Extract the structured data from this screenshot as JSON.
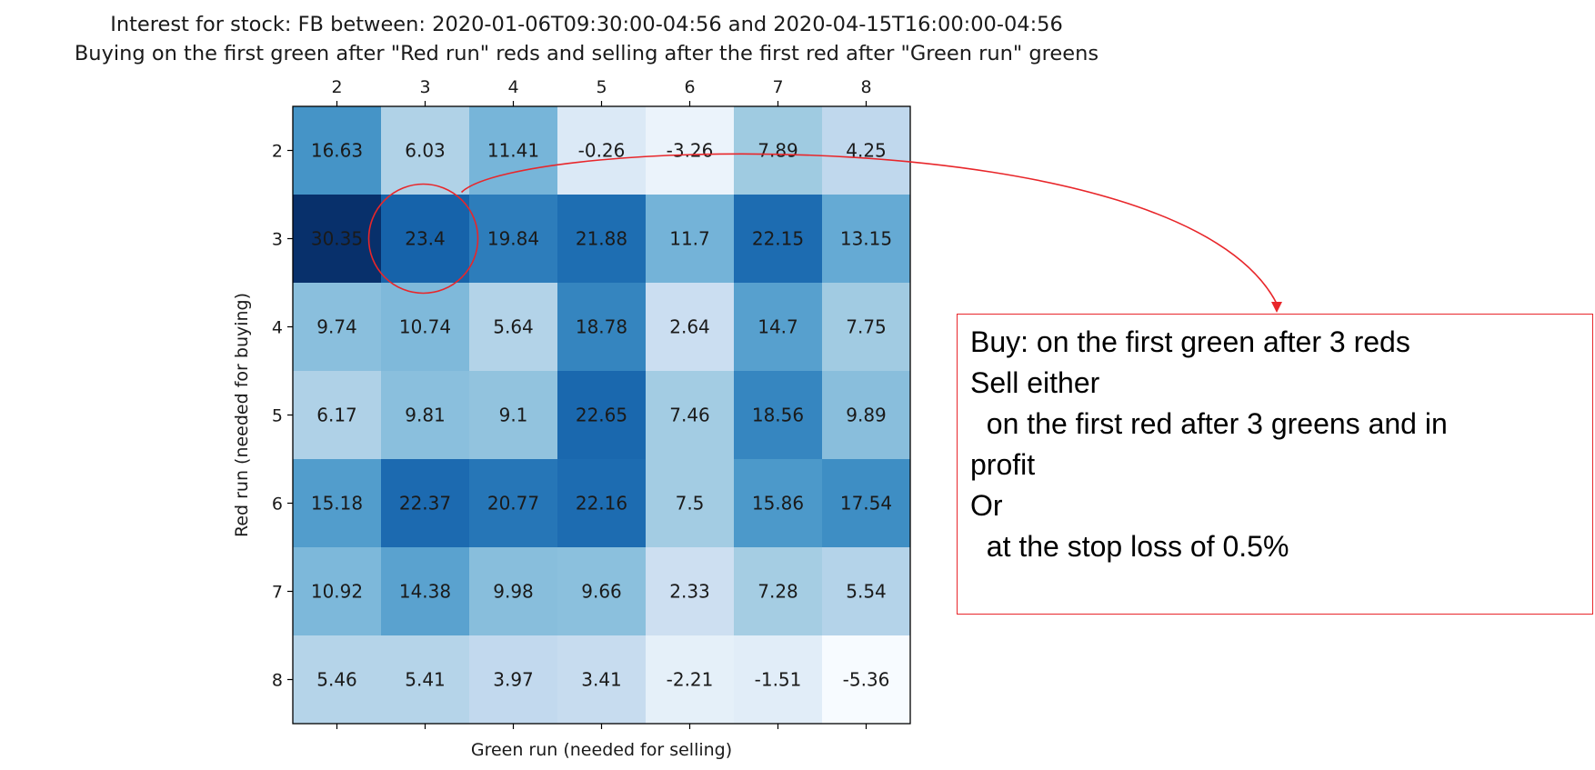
{
  "chart_data": {
    "type": "heatmap",
    "title": "Interest for stock: FB between: 2020-01-06T09:30:00-04:56 and 2020-04-15T16:00:00-04:56",
    "subtitle": "Buying on the first green after \"Red run\" reds and selling after the first red after \"Green run\" greens",
    "xlabel": "Green run (needed for selling)",
    "ylabel": "Red run (needed for buying)",
    "x_ticks": [
      "2",
      "3",
      "4",
      "5",
      "6",
      "7",
      "8"
    ],
    "y_ticks": [
      "2",
      "3",
      "4",
      "5",
      "6",
      "7",
      "8"
    ],
    "x_axis_position": "top",
    "colormap": "Blues",
    "values": [
      [
        16.63,
        6.03,
        11.41,
        -0.26,
        -3.26,
        7.89,
        4.25
      ],
      [
        30.35,
        23.4,
        19.84,
        21.88,
        11.7,
        22.15,
        13.15
      ],
      [
        9.74,
        10.74,
        5.64,
        18.78,
        2.64,
        14.7,
        7.75
      ],
      [
        6.17,
        9.81,
        9.1,
        22.65,
        7.46,
        18.56,
        9.89
      ],
      [
        15.18,
        22.37,
        20.77,
        22.16,
        7.5,
        15.86,
        17.54
      ],
      [
        10.92,
        14.38,
        9.98,
        9.66,
        2.33,
        7.28,
        5.54
      ],
      [
        5.46,
        5.41,
        3.97,
        3.41,
        -2.21,
        -1.51,
        -5.36
      ]
    ],
    "highlighted_cell": {
      "red_run": "3",
      "green_run": "3",
      "value": 23.4
    }
  },
  "annotation": {
    "lines": [
      "Buy: on the first green after 3 reds",
      "",
      "Sell either",
      "  on the first red after 3 greens and in",
      "profit",
      "Or",
      "  at the stop loss of 0.5%"
    ],
    "color": "#e8262a"
  }
}
